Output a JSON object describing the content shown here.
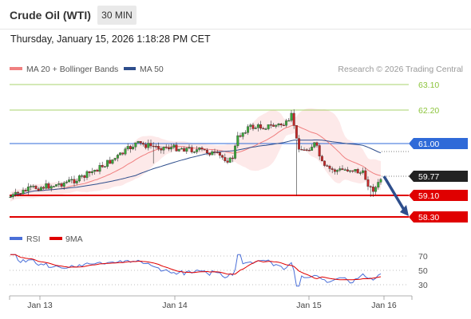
{
  "header": {
    "instrument": "Crude Oil (WTI)",
    "timeframe": "30 MIN",
    "datetime": "Thursday, January 15, 2026 1:18:28 PM CET"
  },
  "legend": {
    "ma20": "MA 20 + Bollinger Bands",
    "ma50": "MA 50",
    "credit": "Research © 2026 Trading Central",
    "rsi": "RSI",
    "rsi_ma": "9MA"
  },
  "colors": {
    "ma20": "#f08080",
    "ma50": "#2e4e8c",
    "bollinger_fill": "#fde5e5",
    "resistance": "#8cc43c",
    "pivot_line": "#2f6ad8",
    "support": "#e00000",
    "candle_up": "#3aa63a",
    "candle_down": "#c42828",
    "rsi": "#4a6fd8",
    "rsi_ma": "#e00000",
    "arrow": "#2e4e8c"
  },
  "chart_data": [
    {
      "type": "candlestick",
      "title": "",
      "x_tick_labels": [
        "Jan 13",
        "Jan 14",
        "Jan 15",
        "Jan 16"
      ],
      "price_levels": [
        {
          "label": "63.10",
          "value": 63.1,
          "style": "resistance"
        },
        {
          "label": "62.20",
          "value": 62.2,
          "style": "resistance"
        },
        {
          "label": "61.00",
          "value": 61.0,
          "style": "pivot"
        },
        {
          "label": "59.77",
          "value": 59.77,
          "style": "last"
        },
        {
          "label": "59.10",
          "value": 59.1,
          "style": "support"
        },
        {
          "label": "58.30",
          "value": 58.3,
          "style": "support"
        }
      ],
      "ylim": [
        58.25,
        63.25
      ],
      "trend_arrow": {
        "from": 59.77,
        "to": 58.3
      },
      "series": [
        {
          "name": "MA 20 + Bollinger Bands"
        },
        {
          "name": "MA 50"
        }
      ]
    },
    {
      "type": "line",
      "title": "",
      "y_tick_labels": [
        "70",
        "50",
        "30"
      ],
      "ylim": [
        20,
        80
      ],
      "series": [
        {
          "name": "RSI"
        },
        {
          "name": "9MA"
        }
      ]
    }
  ]
}
